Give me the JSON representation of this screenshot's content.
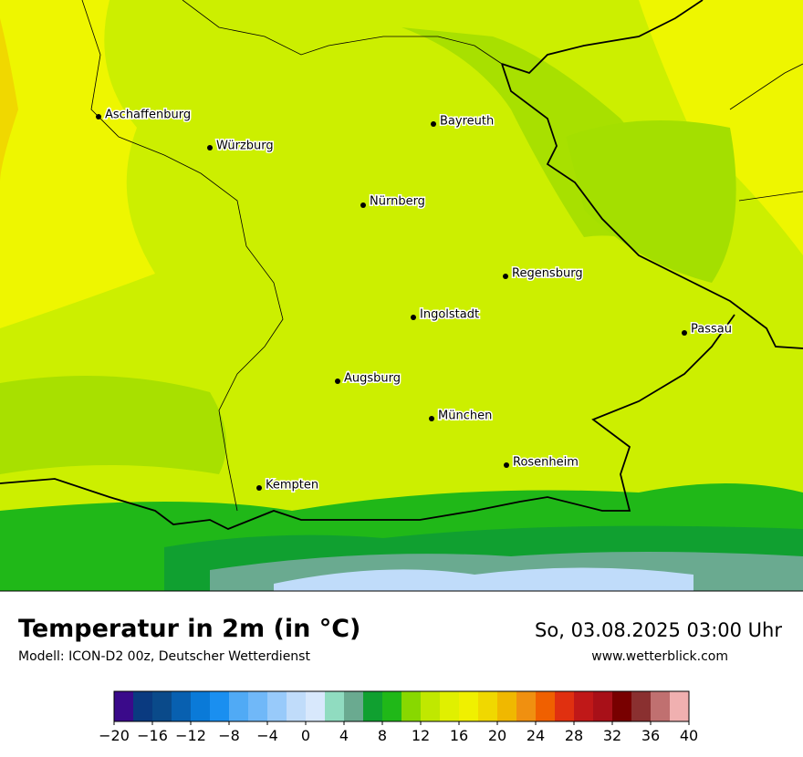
{
  "map": {
    "cities": [
      "Aschaffenburg",
      "Würzburg",
      "Bayreuth",
      "Nürnberg",
      "Regensburg",
      "Ingolstadt",
      "Passau",
      "Augsburg",
      "München",
      "Rosenheim",
      "Kempten"
    ]
  },
  "footer": {
    "title": "Temperatur in 2m (in °C)",
    "subtitle": "Modell: ICON-D2 00z, Deutscher Wetterdienst",
    "date": "So, 03.08.2025 03:00 Uhr",
    "website": "www.wetterblick.com"
  },
  "colorbar": {
    "lim": [
      -20,
      40
    ],
    "ticks": [
      {
        "value": -20,
        "label": "−20"
      },
      {
        "value": -16,
        "label": "−16"
      },
      {
        "value": -12,
        "label": "−12"
      },
      {
        "value": -8,
        "label": "−8"
      },
      {
        "value": -4,
        "label": "−4"
      },
      0,
      4,
      8,
      12,
      16,
      20,
      24,
      28,
      32,
      36,
      40
    ],
    "colors": [
      "#3a0a8a",
      "#0a3a80",
      "#0a4a8a",
      "#0860b0",
      "#0a7ad8",
      "#1a8ff0",
      "#50aaf5",
      "#70b8f8",
      "#98cafa",
      "#c0dcfa",
      "#d8e8fc",
      "#90dcc0",
      "#6aaa90",
      "#10a030",
      "#20b818",
      "#88d800",
      "#c0e800",
      "#e0f000",
      "#f0f000",
      "#f0d800",
      "#f0b800",
      "#f09010",
      "#f06000",
      "#e03010",
      "#c01818",
      "#a81018",
      "#780000",
      "#8a3030",
      "#c07070",
      "#f0b0b0",
      "#ffd8d8"
    ]
  }
}
